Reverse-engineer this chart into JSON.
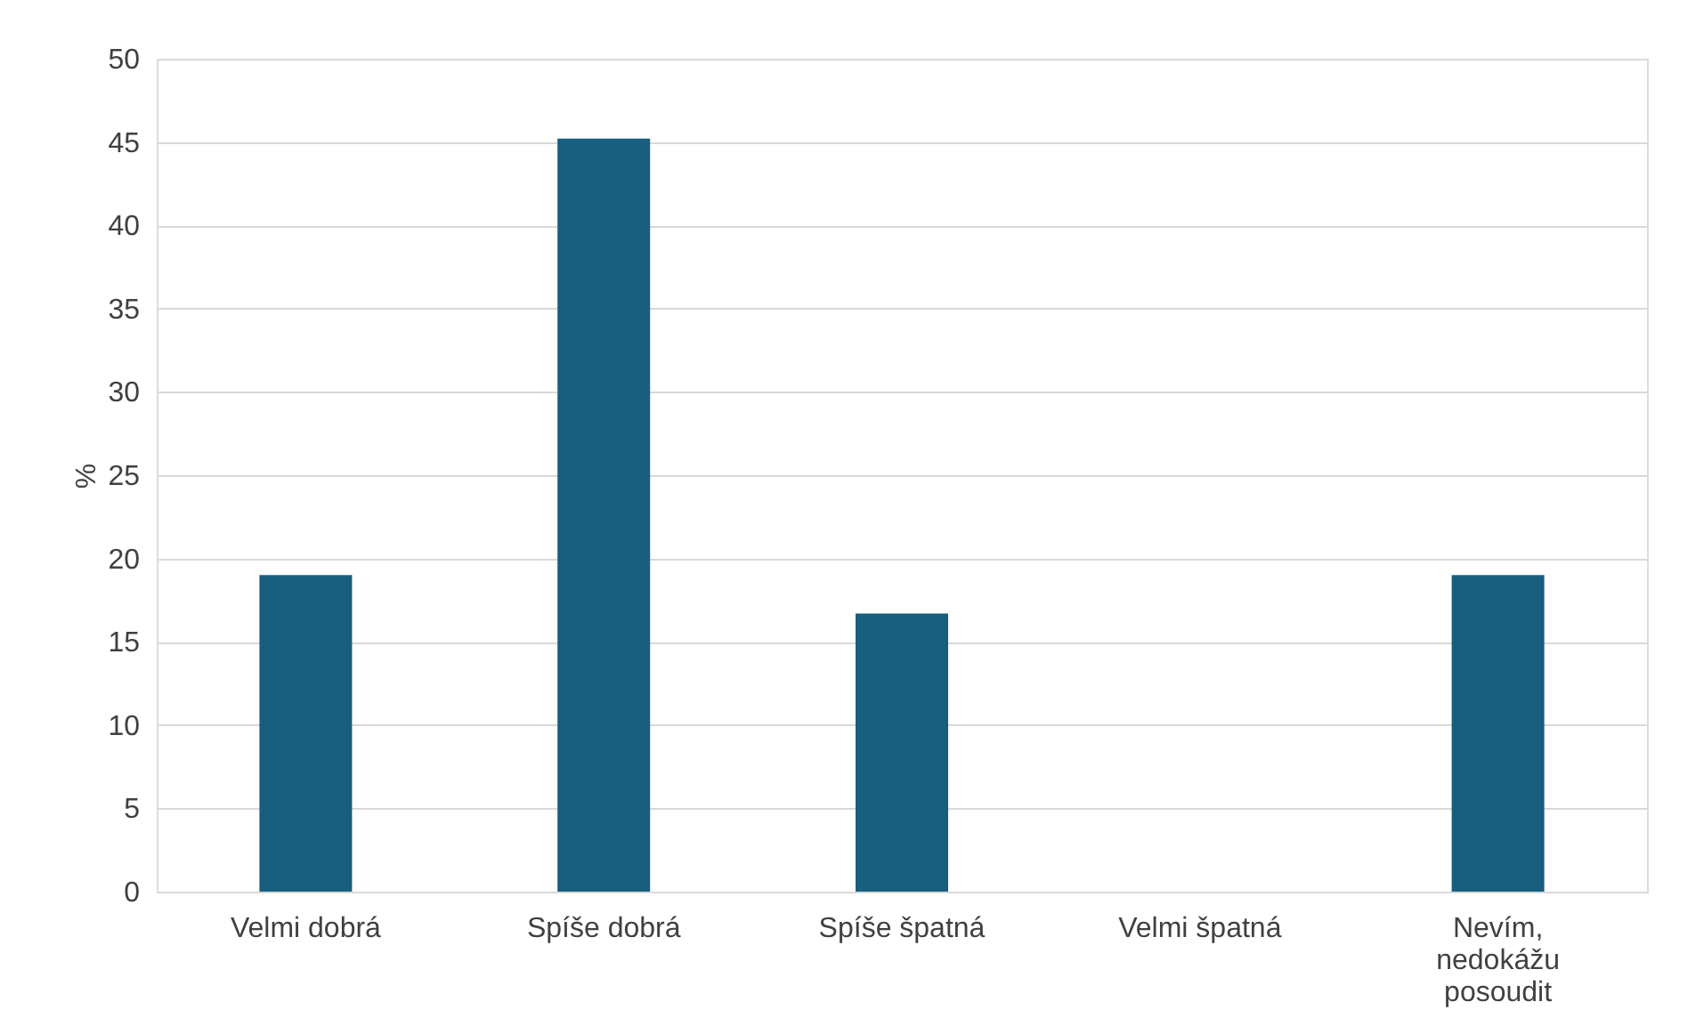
{
  "chart_data": {
    "type": "bar",
    "categories": [
      "Velmi dobrá",
      "Spíše dobrá",
      "Spíše špatná",
      "Velmi špatná",
      "Nevím, nedokážu posoudit"
    ],
    "values": [
      19.0,
      45.2,
      16.7,
      0,
      19.0
    ],
    "color": "#175e7f",
    "ylabel": "%",
    "ylim": [
      0,
      50
    ],
    "yticks": [
      0,
      5,
      10,
      15,
      20,
      25,
      30,
      35,
      40,
      45,
      50
    ],
    "grid": "y"
  }
}
